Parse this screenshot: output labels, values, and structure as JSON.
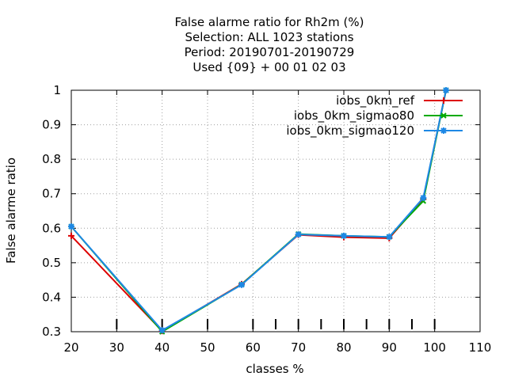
{
  "chart_data": {
    "type": "line",
    "title_lines": [
      "False alarme ratio  for Rh2m (%)",
      "Selection: ALL   1023 stations",
      "Period: 20190701-20190729",
      "Used {09} + 00 01 02 03"
    ],
    "xlabel": "classes %",
    "ylabel": "False alarme ratio",
    "xlim": [
      20,
      110
    ],
    "ylim": [
      0.3,
      1.0
    ],
    "x_ticks": [
      20,
      30,
      40,
      50,
      60,
      70,
      80,
      90,
      100,
      110
    ],
    "y_ticks": [
      0.3,
      0.4,
      0.5,
      0.6,
      0.7,
      0.8,
      0.9,
      1.0
    ],
    "x_tick_labels": [
      "20",
      "30",
      "40",
      "50",
      "60",
      "70",
      "80",
      "90",
      "100",
      "110"
    ],
    "y_tick_labels": [
      "0.3",
      "0.4",
      "0.5",
      "0.6",
      "0.7",
      "0.8",
      "0.9",
      "1"
    ],
    "bottom_marks_x": [
      30,
      40,
      50,
      60,
      65,
      70,
      75,
      80,
      85,
      90,
      95,
      100
    ],
    "grid": true,
    "legend_position": "top-right",
    "series": [
      {
        "name": "iobs_0km_ref",
        "color": "#dd0000",
        "marker": "plus",
        "x": [
          20,
          40,
          57.5,
          70,
          80,
          90,
          97.5,
          102.5
        ],
        "y": [
          0.578,
          0.302,
          0.438,
          0.581,
          0.574,
          0.571,
          0.684,
          1.0
        ]
      },
      {
        "name": "iobs_0km_sigmao80",
        "color": "#00aa00",
        "marker": "cross",
        "x": [
          20,
          40,
          57.5,
          70,
          80,
          90,
          97.5,
          102.5
        ],
        "y": [
          0.605,
          0.3,
          0.437,
          0.583,
          0.578,
          0.575,
          0.679,
          1.0
        ]
      },
      {
        "name": "iobs_0km_sigmao120",
        "color": "#1e88e5",
        "marker": "star",
        "x": [
          20,
          40,
          57.5,
          70,
          80,
          90,
          97.5,
          102.5
        ],
        "y": [
          0.605,
          0.304,
          0.436,
          0.582,
          0.578,
          0.575,
          0.688,
          1.0
        ]
      }
    ]
  }
}
